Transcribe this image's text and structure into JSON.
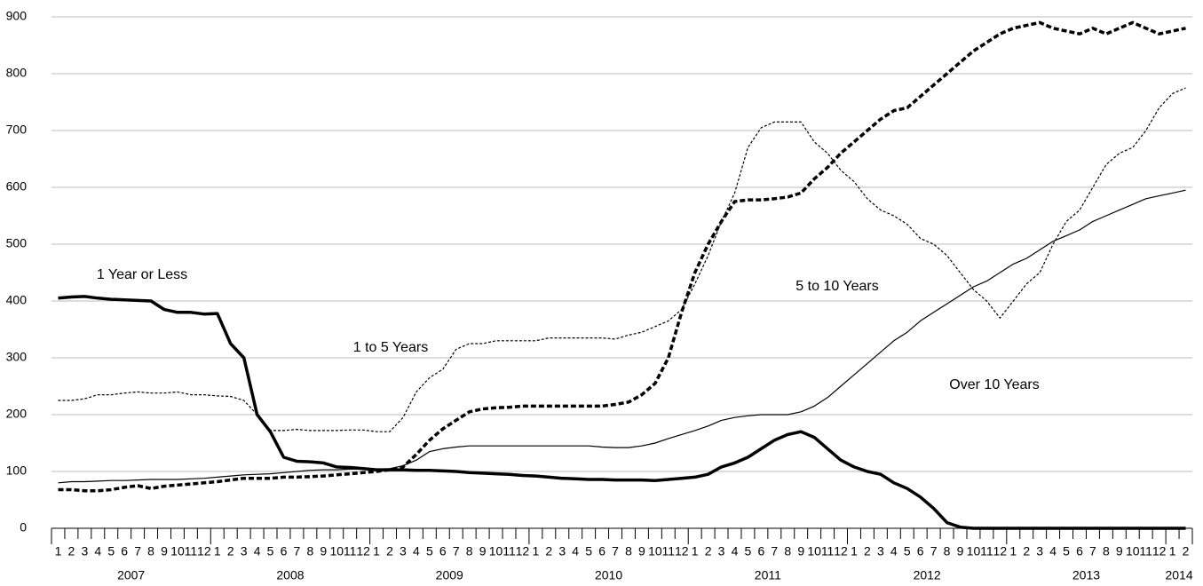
{
  "chart_data": {
    "type": "line",
    "categories": [
      "1",
      "2",
      "3",
      "4",
      "5",
      "6",
      "7",
      "8",
      "9",
      "10",
      "11",
      "12",
      "1",
      "2",
      "3",
      "4",
      "5",
      "6",
      "7",
      "8",
      "9",
      "10",
      "11",
      "12",
      "1",
      "2",
      "3",
      "4",
      "5",
      "6",
      "7",
      "8",
      "9",
      "10",
      "11",
      "12",
      "1",
      "2",
      "3",
      "4",
      "5",
      "6",
      "7",
      "8",
      "9",
      "10",
      "11",
      "12",
      "1",
      "2",
      "3",
      "4",
      "5",
      "6",
      "7",
      "8",
      "9",
      "10",
      "11",
      "12",
      "1",
      "2",
      "3",
      "4",
      "5",
      "6",
      "7",
      "8",
      "9",
      "10",
      "11",
      "12",
      "1",
      "2",
      "3",
      "4",
      "5",
      "6",
      "7",
      "8",
      "9",
      "10",
      "11",
      "12",
      "1",
      "2"
    ],
    "years": [
      "2007",
      "2008",
      "2009",
      "2010",
      "2011",
      "2012",
      "2013",
      "2014"
    ],
    "ylim": [
      0,
      900
    ],
    "yticks": [
      0,
      100,
      200,
      300,
      400,
      500,
      600,
      700,
      800,
      900
    ],
    "grid": true,
    "series": [
      {
        "name": "1 Year or Less",
        "color": "#000000",
        "line_style": "solid",
        "line_weight": "bold",
        "values": [
          405,
          407,
          408,
          405,
          403,
          402,
          401,
          400,
          385,
          380,
          380,
          377,
          378,
          325,
          300,
          200,
          170,
          125,
          118,
          117,
          115,
          108,
          107,
          105,
          103,
          103,
          103,
          102,
          102,
          101,
          100,
          98,
          97,
          96,
          95,
          93,
          92,
          90,
          88,
          87,
          86,
          86,
          85,
          85,
          85,
          84,
          86,
          88,
          90,
          95,
          108,
          115,
          125,
          140,
          155,
          165,
          170,
          160,
          140,
          120,
          108,
          100,
          95,
          80,
          70,
          55,
          35,
          10,
          2,
          0,
          0,
          0,
          0,
          0,
          0,
          0,
          0,
          0,
          0,
          0,
          0,
          0,
          0,
          0,
          0,
          0
        ]
      },
      {
        "name": "1 to 5 Years",
        "color": "#000000",
        "line_style": "dashed",
        "line_weight": "thin",
        "values": [
          225,
          225,
          228,
          235,
          235,
          238,
          240,
          238,
          238,
          240,
          235,
          235,
          233,
          232,
          225,
          200,
          172,
          172,
          174,
          172,
          172,
          172,
          173,
          173,
          170,
          170,
          195,
          240,
          265,
          280,
          315,
          325,
          325,
          330,
          330,
          330,
          330,
          335,
          335,
          335,
          335,
          335,
          333,
          340,
          345,
          355,
          365,
          385,
          430,
          480,
          540,
          590,
          670,
          705,
          715,
          715,
          715,
          680,
          660,
          630,
          610,
          580,
          560,
          550,
          535,
          510,
          500,
          480,
          450,
          420,
          400,
          370,
          400,
          430,
          450,
          500,
          540,
          560,
          600,
          640,
          660,
          670,
          700,
          740,
          765,
          775
        ]
      },
      {
        "name": "5 to 10 Years",
        "color": "#000000",
        "line_style": "dashed",
        "line_weight": "bold",
        "values": [
          68,
          68,
          66,
          66,
          68,
          72,
          75,
          70,
          74,
          76,
          78,
          80,
          82,
          85,
          88,
          88,
          88,
          90,
          90,
          91,
          92,
          94,
          96,
          98,
          100,
          103,
          108,
          130,
          155,
          175,
          190,
          205,
          210,
          212,
          213,
          215,
          215,
          215,
          215,
          215,
          215,
          215,
          218,
          222,
          235,
          255,
          300,
          380,
          450,
          500,
          540,
          575,
          578,
          578,
          580,
          583,
          590,
          615,
          635,
          660,
          680,
          700,
          720,
          735,
          740,
          760,
          780,
          800,
          820,
          840,
          855,
          870,
          880,
          885,
          890,
          880,
          875,
          870,
          880,
          870,
          880,
          890,
          880,
          870,
          875,
          880
        ]
      },
      {
        "name": "Over 10 Years",
        "color": "#000000",
        "line_style": "solid",
        "line_weight": "thin",
        "values": [
          80,
          82,
          82,
          83,
          84,
          84,
          85,
          86,
          86,
          86,
          87,
          88,
          90,
          92,
          94,
          95,
          96,
          98,
          100,
          102,
          103,
          103,
          104,
          104,
          104,
          105,
          110,
          120,
          135,
          140,
          143,
          145,
          145,
          145,
          145,
          145,
          145,
          145,
          145,
          145,
          145,
          143,
          142,
          142,
          145,
          150,
          158,
          165,
          172,
          180,
          190,
          195,
          198,
          200,
          200,
          200,
          205,
          215,
          230,
          250,
          270,
          290,
          310,
          330,
          345,
          365,
          380,
          395,
          410,
          425,
          435,
          450,
          465,
          475,
          490,
          505,
          515,
          525,
          540,
          550,
          560,
          570,
          580,
          585,
          590,
          595
        ]
      }
    ]
  }
}
